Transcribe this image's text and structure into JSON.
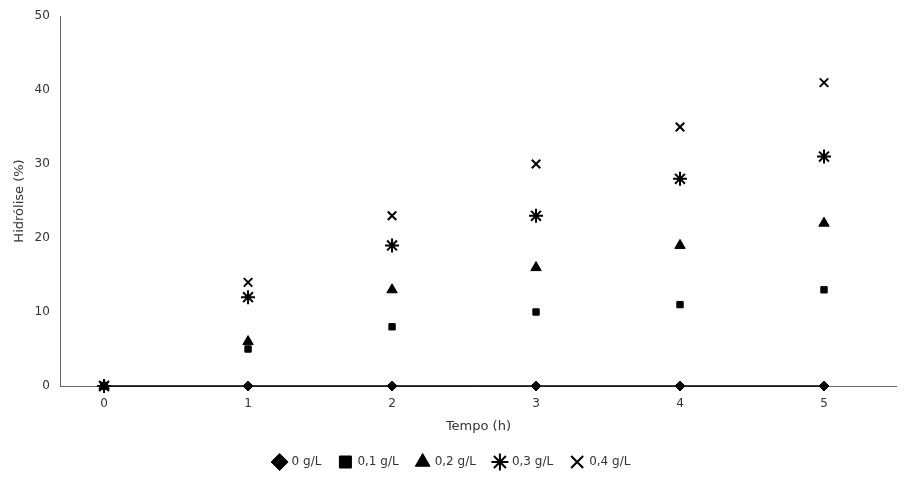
{
  "chart_data": {
    "type": "scatter",
    "xlabel": "Tempo (h)",
    "ylabel": "Hidrólise (%)",
    "x": [
      0,
      1,
      2,
      3,
      4,
      5
    ],
    "series": [
      {
        "name": "0 g/L",
        "color": "#000000",
        "marker": "diamond",
        "line_style": "solid",
        "values": [
          0,
          0,
          0,
          0,
          0,
          0
        ]
      },
      {
        "name": "0,1 g/L",
        "color": "#000000",
        "marker": "square",
        "line_style": "none",
        "values": [
          0,
          5,
          8,
          10,
          11,
          13
        ]
      },
      {
        "name": "0,2 g/L",
        "color": "#000000",
        "marker": "triangle",
        "line_style": "none",
        "values": [
          0,
          6,
          13,
          16,
          19,
          22
        ]
      },
      {
        "name": "0,3 g/L",
        "color": "#000000",
        "marker": "star",
        "line_style": "none",
        "values": [
          0,
          12,
          19,
          23,
          28,
          31
        ]
      },
      {
        "name": "0,4 g/L",
        "color": "#000000",
        "marker": "x",
        "line_style": "none",
        "values": [
          0,
          14,
          23,
          30,
          35,
          41
        ]
      }
    ],
    "xlim": [
      -0.3,
      5.5
    ],
    "xticks": [
      0,
      1,
      2,
      3,
      4,
      5
    ],
    "ylim": [
      0,
      50
    ],
    "yticks": [
      0,
      10,
      20,
      30,
      40,
      50
    ],
    "grid": false,
    "legend": "bottom"
  }
}
